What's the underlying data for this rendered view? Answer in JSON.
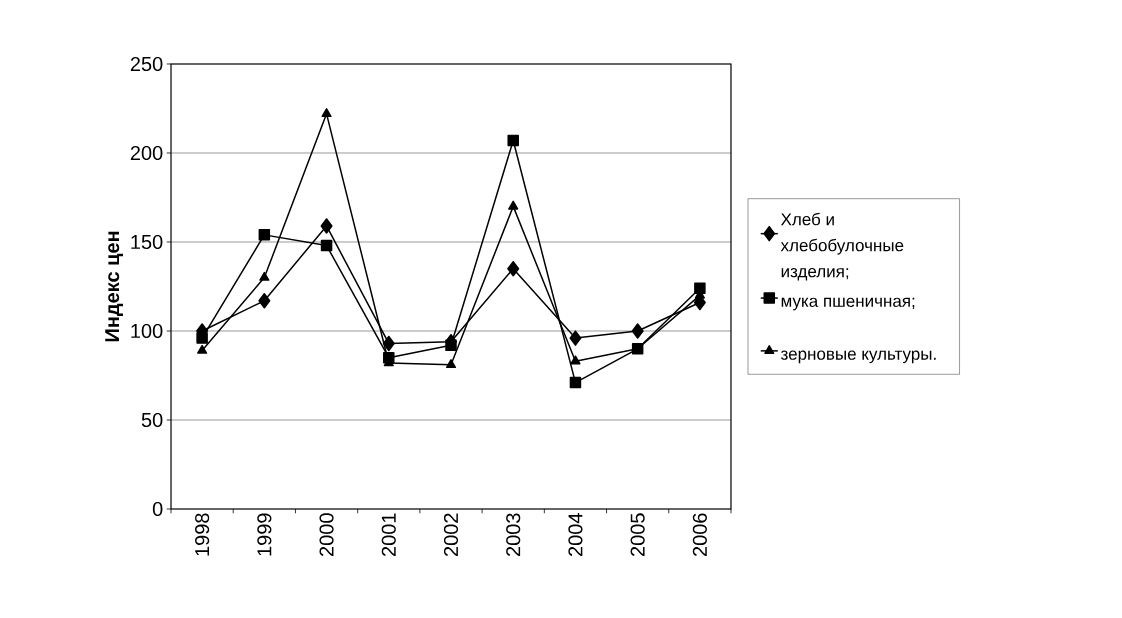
{
  "chart_data": {
    "type": "line",
    "ylabel": "Индекс цен",
    "categories": [
      "1998",
      "1999",
      "2000",
      "2001",
      "2002",
      "2003",
      "2004",
      "2005",
      "2006"
    ],
    "series": [
      {
        "name": "Хлеб и хлебобулочные изделия;",
        "color": "#000000",
        "marker": "diamond",
        "values": [
          100,
          117,
          159,
          93,
          94,
          135,
          96,
          100,
          116
        ]
      },
      {
        "name": "мука пшеничная;",
        "color": "#000000",
        "marker": "square",
        "values": [
          96,
          154,
          148,
          85,
          92,
          207,
          71,
          90,
          124
        ]
      },
      {
        "name": "зерновые культуры.",
        "color": "#000000",
        "marker": "triangle",
        "values": [
          89,
          130,
          222,
          82,
          81,
          170,
          83,
          90,
          120
        ]
      }
    ],
    "ylim": [
      0,
      250
    ],
    "yticks": [
      0,
      50,
      100,
      150,
      200,
      250
    ],
    "grid": "y",
    "legend": "right",
    "line_style": "solid"
  }
}
